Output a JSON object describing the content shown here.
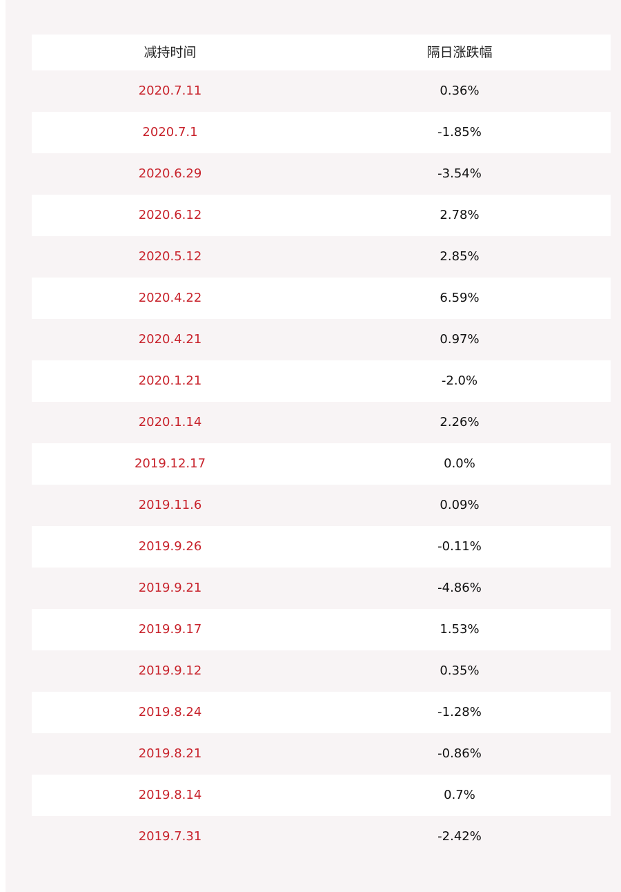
{
  "table": {
    "headers": [
      "减持时间",
      "隔日涨跌幅"
    ],
    "rows": [
      {
        "date": "2020.7.11",
        "change": "0.36%"
      },
      {
        "date": "2020.7.1",
        "change": "-1.85%"
      },
      {
        "date": "2020.6.29",
        "change": "-3.54%"
      },
      {
        "date": "2020.6.12",
        "change": "2.78%"
      },
      {
        "date": "2020.5.12",
        "change": "2.85%"
      },
      {
        "date": "2020.4.22",
        "change": "6.59%"
      },
      {
        "date": "2020.4.21",
        "change": "0.97%"
      },
      {
        "date": "2020.1.21",
        "change": "-2.0%"
      },
      {
        "date": "2020.1.14",
        "change": "2.26%"
      },
      {
        "date": "2019.12.17",
        "change": "0.0%"
      },
      {
        "date": "2019.11.6",
        "change": "0.09%"
      },
      {
        "date": "2019.9.26",
        "change": "-0.11%"
      },
      {
        "date": "2019.9.21",
        "change": "-4.86%"
      },
      {
        "date": "2019.9.17",
        "change": "1.53%"
      },
      {
        "date": "2019.9.12",
        "change": "0.35%"
      },
      {
        "date": "2019.8.24",
        "change": "-1.28%"
      },
      {
        "date": "2019.8.21",
        "change": "-0.86%"
      },
      {
        "date": "2019.8.14",
        "change": "0.7%"
      },
      {
        "date": "2019.7.31",
        "change": "-2.42%"
      }
    ]
  },
  "colors": {
    "date_text": "#c8232c",
    "value_text": "#111111",
    "stripe": "#f8f4f5",
    "white": "#ffffff"
  }
}
